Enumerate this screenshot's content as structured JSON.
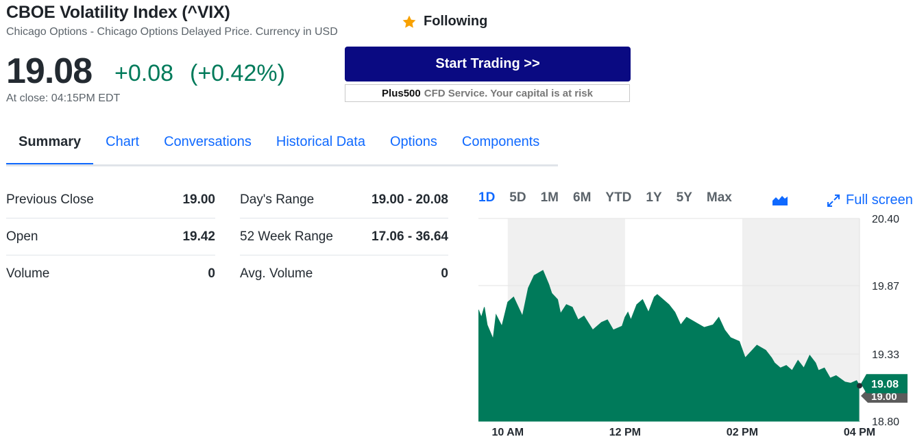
{
  "header": {
    "title": "CBOE Volatility Index (^VIX)",
    "subtitle": "Chicago Options - Chicago Options Delayed Price. Currency in USD",
    "follow_label": "Following",
    "price": "19.08",
    "change": "+0.08",
    "change_pct": "(+0.42%)",
    "close_time": "At close: 04:15PM EDT",
    "colors": {
      "up": "#007a5a",
      "star": "#f8a100"
    }
  },
  "ad": {
    "button_label": "Start Trading >>",
    "brand": "Plus500",
    "note": "CFD Service. Your capital is at risk"
  },
  "tabs": [
    {
      "label": "Summary",
      "active": true
    },
    {
      "label": "Chart"
    },
    {
      "label": "Conversations"
    },
    {
      "label": "Historical Data"
    },
    {
      "label": "Options"
    },
    {
      "label": "Components"
    }
  ],
  "stats_left": [
    {
      "label": "Previous Close",
      "value": "19.00"
    },
    {
      "label": "Open",
      "value": "19.42"
    },
    {
      "label": "Volume",
      "value": "0"
    }
  ],
  "stats_right": [
    {
      "label": "Day's Range",
      "value": "19.00 - 20.08"
    },
    {
      "label": "52 Week Range",
      "value": "17.06 - 36.64"
    },
    {
      "label": "Avg. Volume",
      "value": "0"
    }
  ],
  "chart_controls": {
    "ranges": [
      "1D",
      "5D",
      "1M",
      "6M",
      "YTD",
      "1Y",
      "5Y",
      "Max"
    ],
    "active_range": "1D",
    "chart_type_icon": "mountain-chart-icon",
    "fullscreen_label": "Full screen",
    "fullscreen_icon": "expand-icon"
  },
  "chart_data": {
    "type": "area",
    "title": "",
    "color": "#007a5a",
    "ylim": [
      18.8,
      20.4
    ],
    "y_ticks": [
      "20.40",
      "19.87",
      "19.33",
      "18.80"
    ],
    "x_ticks": [
      "10 AM",
      "12 PM",
      "02 PM",
      "04 PM"
    ],
    "x_tick_hours": [
      10,
      12,
      14,
      16
    ],
    "xlim_hours": [
      9.5,
      16
    ],
    "shaded_hour_bands": [
      [
        10,
        12
      ],
      [
        14,
        16
      ]
    ],
    "last_price_label": "19.08",
    "previous_close_label": "19.00",
    "previous_close": 19.0,
    "series": [
      {
        "x_hours": [
          9.5,
          9.55,
          9.6,
          9.65,
          9.75,
          9.8,
          9.9,
          10.0,
          10.1,
          10.2,
          10.25,
          10.35,
          10.45,
          10.6,
          10.7,
          10.75,
          10.85,
          10.9,
          11.0,
          11.1,
          11.2,
          11.3,
          11.45,
          11.6,
          11.7,
          11.8,
          11.95,
          12.0,
          12.05,
          12.1,
          12.2,
          12.3,
          12.4,
          12.5,
          12.55,
          12.65,
          12.75,
          12.85,
          12.95,
          13.05,
          13.2,
          13.35,
          13.5,
          13.6,
          13.7,
          13.8,
          13.95,
          14.05,
          14.15,
          14.25,
          14.4,
          14.5,
          14.55,
          14.65,
          14.75,
          14.85,
          14.95,
          15.05,
          15.15,
          15.25,
          15.3,
          15.4,
          15.5,
          15.6,
          15.75,
          15.85,
          15.95,
          16.0
        ],
        "values": [
          19.68,
          19.62,
          19.7,
          19.56,
          19.45,
          19.64,
          19.55,
          19.74,
          19.78,
          19.68,
          19.63,
          19.85,
          19.95,
          19.99,
          19.88,
          19.81,
          19.76,
          19.65,
          19.72,
          19.7,
          19.6,
          19.63,
          19.52,
          19.58,
          19.6,
          19.52,
          19.55,
          19.62,
          19.66,
          19.6,
          19.72,
          19.76,
          19.66,
          19.78,
          19.8,
          19.76,
          19.72,
          19.66,
          19.56,
          19.62,
          19.58,
          19.54,
          19.56,
          19.62,
          19.52,
          19.46,
          19.43,
          19.3,
          19.35,
          19.4,
          19.36,
          19.3,
          19.26,
          19.22,
          19.24,
          19.2,
          19.28,
          19.22,
          19.32,
          19.26,
          19.2,
          19.22,
          19.14,
          19.16,
          19.11,
          19.1,
          19.12,
          19.08
        ]
      }
    ]
  }
}
